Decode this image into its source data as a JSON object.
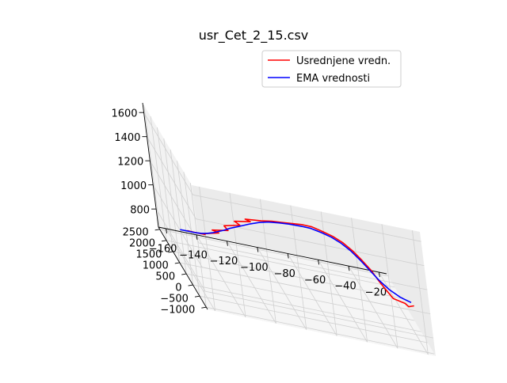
{
  "chart_data": {
    "type": "line",
    "projection": "3d",
    "title": "usr_Cet_2_15.csv",
    "xlabel": "",
    "ylabel": "",
    "zlabel": "",
    "grid": true,
    "legend_position": "top-right",
    "x_ticks": [
      "−160",
      "−140",
      "−120",
      "−100",
      "−80",
      "−60",
      "−40",
      "−20"
    ],
    "y_ticks": [
      "−1000",
      "−500",
      "0",
      "500",
      "1000",
      "1500",
      "2000",
      "2500"
    ],
    "z_ticks": [
      "800",
      "1000",
      "1200",
      "1400",
      "1600"
    ],
    "xlim": [
      -165,
      -15
    ],
    "ylim": [
      -1100,
      2600
    ],
    "zlim": [
      650,
      1680
    ],
    "series": [
      {
        "name": "Usrednjene vredn.",
        "color": "#ff0000",
        "points": [
          [
            -148,
            2300,
            720
          ],
          [
            -145,
            2200,
            735
          ],
          [
            -138,
            2050,
            760
          ],
          [
            -140,
            1950,
            780
          ],
          [
            -130,
            1850,
            830
          ],
          [
            -135,
            1750,
            860
          ],
          [
            -125,
            1650,
            900
          ],
          [
            -128,
            1550,
            950
          ],
          [
            -118,
            1450,
            1000
          ],
          [
            -122,
            1350,
            1040
          ],
          [
            -112,
            1250,
            1080
          ],
          [
            -116,
            1150,
            1110
          ],
          [
            -106,
            1050,
            1140
          ],
          [
            -100,
            900,
            1180
          ],
          [
            -95,
            700,
            1220
          ],
          [
            -90,
            450,
            1270
          ],
          [
            -85,
            200,
            1320
          ],
          [
            -80,
            -50,
            1360
          ],
          [
            -75,
            -300,
            1380
          ],
          [
            -70,
            -500,
            1390
          ],
          [
            -65,
            -650,
            1380
          ],
          [
            -60,
            -780,
            1350
          ],
          [
            -55,
            -880,
            1300
          ],
          [
            -50,
            -950,
            1240
          ],
          [
            -46,
            -1000,
            1170
          ],
          [
            -42,
            -1030,
            1110
          ],
          [
            -38,
            -1000,
            1050
          ],
          [
            -30,
            -950,
            1020
          ],
          [
            -28,
            -960,
            1000
          ],
          [
            -24,
            -920,
            1010
          ]
        ]
      },
      {
        "name": "EMA vrednosti",
        "color": "#0000ff",
        "points": [
          [
            -152,
            2400,
            700
          ],
          [
            -148,
            2330,
            712
          ],
          [
            -143,
            2220,
            730
          ],
          [
            -140,
            2100,
            755
          ],
          [
            -137,
            1980,
            785
          ],
          [
            -134,
            1860,
            820
          ],
          [
            -131,
            1740,
            860
          ],
          [
            -128,
            1620,
            900
          ],
          [
            -125,
            1500,
            945
          ],
          [
            -121,
            1380,
            990
          ],
          [
            -117,
            1260,
            1035
          ],
          [
            -113,
            1140,
            1080
          ],
          [
            -108,
            1000,
            1130
          ],
          [
            -103,
            850,
            1175
          ],
          [
            -97,
            650,
            1220
          ],
          [
            -92,
            420,
            1265
          ],
          [
            -86,
            170,
            1310
          ],
          [
            -81,
            -80,
            1350
          ],
          [
            -76,
            -320,
            1372
          ],
          [
            -71,
            -510,
            1382
          ],
          [
            -66,
            -660,
            1372
          ],
          [
            -61,
            -790,
            1345
          ],
          [
            -56,
            -890,
            1298
          ],
          [
            -51,
            -960,
            1240
          ],
          [
            -46,
            -1000,
            1180
          ],
          [
            -40,
            -1010,
            1120
          ],
          [
            -33,
            -985,
            1070
          ],
          [
            -26,
            -960,
            1040
          ]
        ]
      }
    ]
  }
}
